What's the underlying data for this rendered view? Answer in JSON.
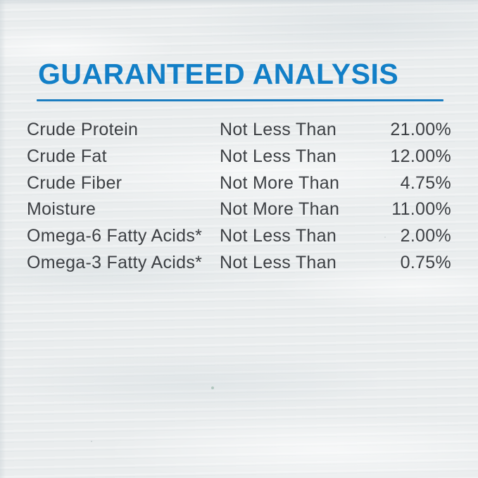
{
  "header": {
    "title": "GUARANTEED ANALYSIS"
  },
  "analysis_table": {
    "rows": [
      {
        "nutrient": "Crude Protein",
        "qualifier": "Not Less Than",
        "value": "21.00%"
      },
      {
        "nutrient": "Crude Fat",
        "qualifier": "Not Less Than",
        "value": "12.00%"
      },
      {
        "nutrient": "Crude Fiber",
        "qualifier": "Not More Than",
        "value": "4.75%"
      },
      {
        "nutrient": "Moisture",
        "qualifier": "Not More Than",
        "value": "11.00%"
      },
      {
        "nutrient": "Omega-6 Fatty Acids*",
        "qualifier": "Not Less Than",
        "value": "2.00%"
      },
      {
        "nutrient": "Omega-3 Fatty Acids*",
        "qualifier": "Not Less Than",
        "value": "0.75%"
      }
    ]
  },
  "colors": {
    "accent_blue": "#127fc7",
    "rule_blue": "#1b7dc0",
    "text_dark": "#3c3f43",
    "background": "#eaedee"
  }
}
